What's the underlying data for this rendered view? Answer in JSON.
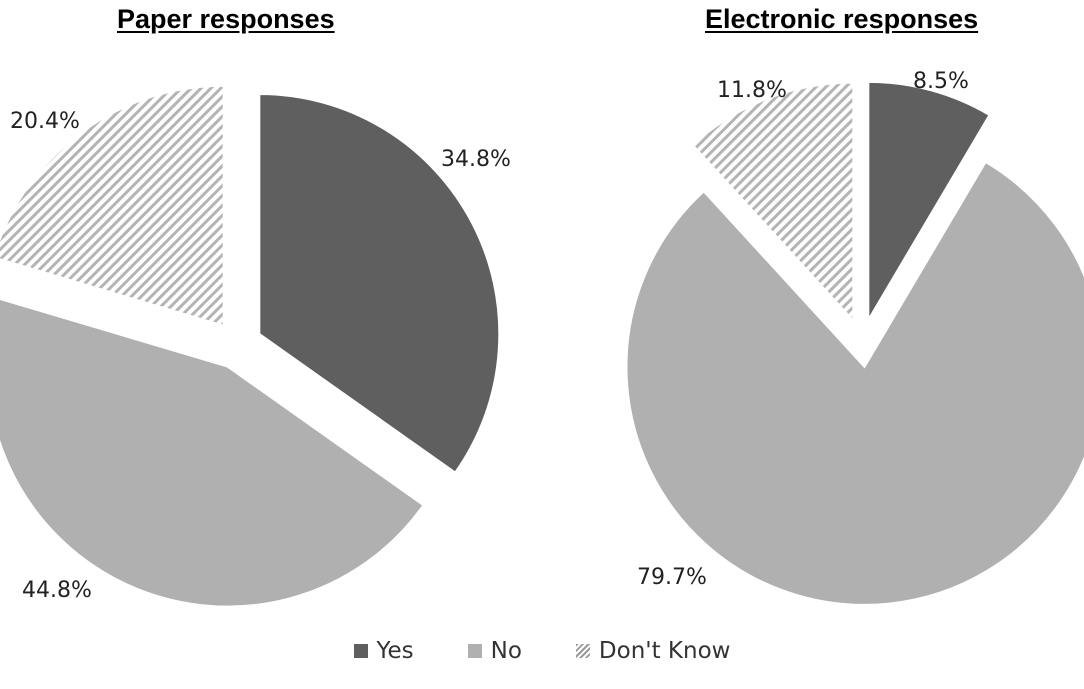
{
  "colors": {
    "Yes": "#5f5f5f",
    "No": "#b0b0b0",
    "Don't Know": "hatch-#b4b4b4"
  },
  "legend": {
    "items": [
      {
        "label": "Yes",
        "swatch": "yes-swatch-icon"
      },
      {
        "label": "No",
        "swatch": "no-swatch-icon"
      },
      {
        "label": "Don't Know",
        "swatch": "dont-know-swatch-icon"
      }
    ]
  },
  "chart_data": [
    {
      "type": "pie",
      "title": "Paper responses",
      "categories": [
        "Yes",
        "No",
        "Don't Know"
      ],
      "values": [
        34.8,
        44.8,
        20.4
      ],
      "labels": [
        "34.8%",
        "44.8%",
        "20.4%"
      ],
      "exploded": true,
      "legend_position": "bottom"
    },
    {
      "type": "pie",
      "title": "Electronic responses",
      "categories": [
        "Yes",
        "No",
        "Don't Know"
      ],
      "values": [
        8.5,
        79.7,
        11.8
      ],
      "labels": [
        "8.5%",
        "79.7%",
        "11.8%"
      ],
      "exploded": true,
      "legend_position": "bottom"
    }
  ]
}
